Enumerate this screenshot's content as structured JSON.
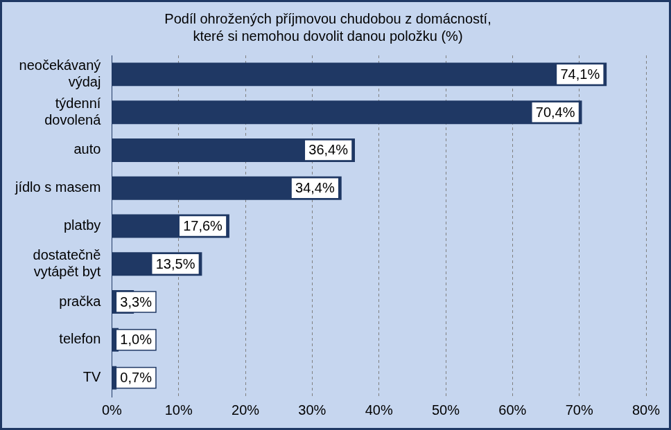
{
  "chart_data": {
    "type": "bar",
    "orientation": "horizontal",
    "title": "Podíl ohrožených příjmovou chudobou z domácností, které si nemohou dovolit danou položku (%)",
    "categories": [
      "neočekávaný výdaj",
      "týdenní dovolená",
      "auto",
      "jídlo s masem",
      "platby",
      "dostatečně vytápět byt",
      "pračka",
      "telefon",
      "TV"
    ],
    "values": [
      74.1,
      70.4,
      36.4,
      34.4,
      17.6,
      13.5,
      3.3,
      1.0,
      0.7
    ],
    "value_labels": [
      "74,1%",
      "70,4%",
      "36,4%",
      "34,4%",
      "17,6%",
      "13,5%",
      "3,3%",
      "1,0%",
      "0,7%"
    ],
    "color": "#1f3864",
    "xlim": [
      0,
      80
    ],
    "xticks": [
      {
        "value": 0,
        "label": "0%"
      },
      {
        "value": 10,
        "label": "10%"
      },
      {
        "value": 20,
        "label": "20%"
      },
      {
        "value": 30,
        "label": "30%"
      },
      {
        "value": 40,
        "label": "40%"
      },
      {
        "value": 50,
        "label": "50%"
      },
      {
        "value": 60,
        "label": "60%"
      },
      {
        "value": 70,
        "label": "70%"
      },
      {
        "value": 80,
        "label": "80%"
      }
    ],
    "grid": true,
    "data_labels": true
  }
}
